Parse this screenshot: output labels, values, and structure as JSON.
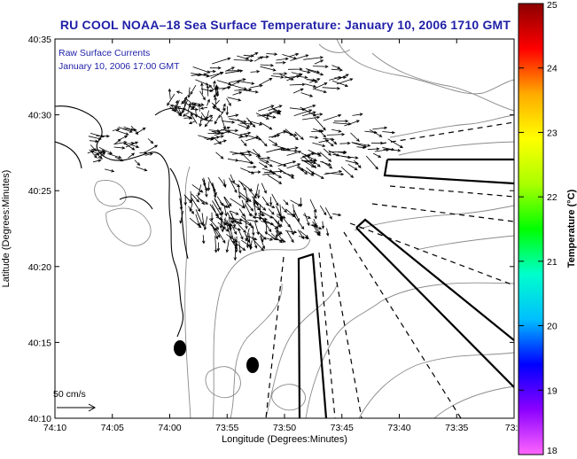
{
  "title": "RU COOL  NOAA–18  Sea Surface Temperature:  January 10, 2006 1710 GMT",
  "overlay": {
    "line1": "Raw Surface Currents",
    "line2": "January 10, 2006 17:00 GMT"
  },
  "axes": {
    "xlabel": "Longitude (Degrees:Minutes)",
    "ylabel": "Latitude (Degrees:Minutes)",
    "xticks": [
      "74:10",
      "74:05",
      "74:00",
      "73:55",
      "73:50",
      "73:45",
      "73:40",
      "73:35",
      "73:3"
    ],
    "yticks": [
      "40:35",
      "40:30",
      "40:25",
      "40:20",
      "40:15",
      "40:10"
    ]
  },
  "scale": {
    "label": "50 cm/s"
  },
  "colorbar": {
    "label": "Temperature (°C)",
    "ticks": [
      "25",
      "24",
      "23",
      "22",
      "21",
      "20",
      "19",
      "18"
    ],
    "min": 18,
    "max": 25,
    "colors": [
      "#ff66ff",
      "#8b00ff",
      "#0000ff",
      "#00bfff",
      "#00ffcc",
      "#00ff00",
      "#aaff00",
      "#ffff00",
      "#ffaa00",
      "#ff0000",
      "#8b0000"
    ]
  },
  "colors": {
    "title": "#1f1fa8",
    "overlay": "#1f1fa8",
    "contour": "#8a8a8a",
    "coast": "#000000"
  }
}
